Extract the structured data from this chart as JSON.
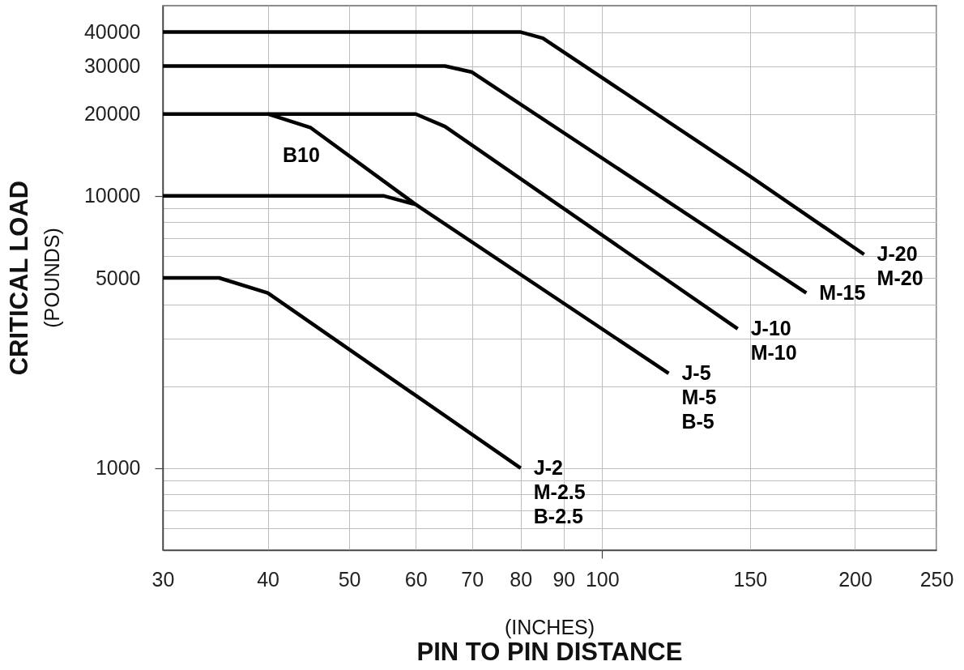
{
  "chart_data": {
    "type": "line",
    "xlabel": "(INCHES)\nPIN TO PIN DISTANCE",
    "ylabel": "CRITICAL LOAD\n(POUNDS)",
    "log": "xy",
    "xlim": [
      30,
      250
    ],
    "xticks": [
      30,
      40,
      50,
      60,
      70,
      80,
      90,
      100,
      150,
      200,
      250
    ],
    "ylim": [
      500,
      50000
    ],
    "yticks": [
      {
        "value": 600,
        "label": null
      },
      {
        "value": 700,
        "label": null
      },
      {
        "value": 800,
        "label": null
      },
      {
        "value": 900,
        "label": null
      },
      1000,
      {
        "value": 2000,
        "label": null
      },
      {
        "value": 3000,
        "label": null
      },
      {
        "value": 4000,
        "label": null
      },
      5000,
      {
        "value": 6000,
        "label": null
      },
      {
        "value": 7000,
        "label": null
      },
      {
        "value": 8000,
        "label": null
      },
      {
        "value": 9000,
        "label": null
      },
      10000,
      20000,
      30000,
      40000
    ],
    "grid": true,
    "line_style": "solid",
    "series": [
      {
        "name": "J-20\nM-20",
        "color": "#000000",
        "x": [
          30,
          80,
          85,
          150,
          205
        ],
        "values": [
          40000,
          40000,
          38000,
          11800,
          6100
        ]
      },
      {
        "name": "M-15",
        "color": "#000000",
        "x": [
          30,
          65,
          70,
          175
        ],
        "values": [
          30000,
          30000,
          28500,
          4400
        ]
      },
      {
        "name": "J-10\nM-10",
        "color": "#000000",
        "x": [
          30,
          60,
          65,
          145
        ],
        "values": [
          20000,
          20000,
          18000,
          3250
        ]
      },
      {
        "name": "B10",
        "color": "#000000",
        "x": [
          40,
          45,
          60
        ],
        "values": [
          20000,
          17800,
          9300
        ]
      },
      {
        "name": "J-5\nM-5\nB-5",
        "color": "#000000",
        "x": [
          30,
          55,
          60,
          120
        ],
        "values": [
          10000,
          10000,
          9300,
          2230
        ]
      },
      {
        "name": "J-2\nM-2.5\nB-2.5",
        "color": "#000000",
        "x": [
          30,
          35,
          40,
          80
        ],
        "values": [
          5000,
          5000,
          4400,
          1000
        ]
      }
    ]
  }
}
